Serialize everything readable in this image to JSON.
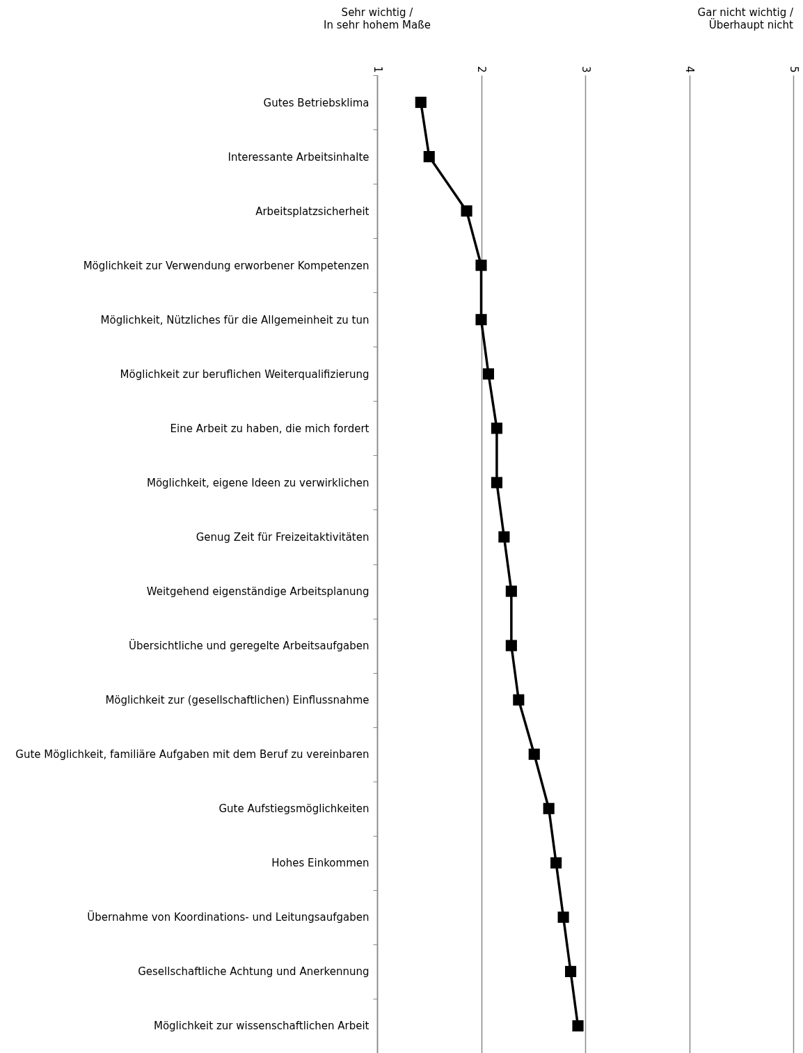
{
  "chart_data": {
    "type": "line",
    "orientation": "horizontal",
    "categories": [
      "Gutes Betriebsklima",
      "Interessante Arbeitsinhalte",
      "Arbeitsplatzsicherheit",
      "Möglichkeit zur Verwendung erworbener Kompetenzen",
      "Möglichkeit, Nützliches für die Allgemeinheit zu tun",
      "Möglichkeit zur beruflichen Weiterqualifizierung",
      "Eine Arbeit zu haben, die mich fordert",
      "Möglichkeit, eigene Ideen zu verwirklichen",
      "Genug Zeit für Freizeitaktivitäten",
      "Weitgehend eigenständige Arbeitsplanung",
      "Übersichtliche und geregelte Arbeitsaufgaben",
      "Möglichkeit zur (gesellschaftlichen) Einflussnahme",
      "Gute Möglichkeit, familiäre Aufgaben mit dem Beruf zu vereinbaren",
      "Gute Aufstiegsmöglichkeiten",
      "Hohes Einkommen",
      "Übernahme von Koordinations- und Leitungsaufgaben",
      "Gesellschaftliche Achtung und Anerkennung",
      "Möglichkeit zur wissenschaftlichen Arbeit"
    ],
    "series": [
      {
        "color": "#000000",
        "values": [
          1.42,
          1.5,
          1.86,
          2.0,
          2.0,
          2.07,
          2.15,
          2.15,
          2.22,
          2.29,
          2.29,
          2.36,
          2.51,
          2.65,
          2.72,
          2.79,
          2.86,
          2.93
        ]
      }
    ],
    "xlim": [
      1,
      5
    ],
    "xticks": [
      1,
      2,
      3,
      4,
      5
    ],
    "grid": "x",
    "marker": "square",
    "line_style": "solid",
    "annotations": [
      "Sehr wichtig / In sehr hohem Maße",
      "Gar nicht wichtig / Überhaupt nicht"
    ]
  }
}
